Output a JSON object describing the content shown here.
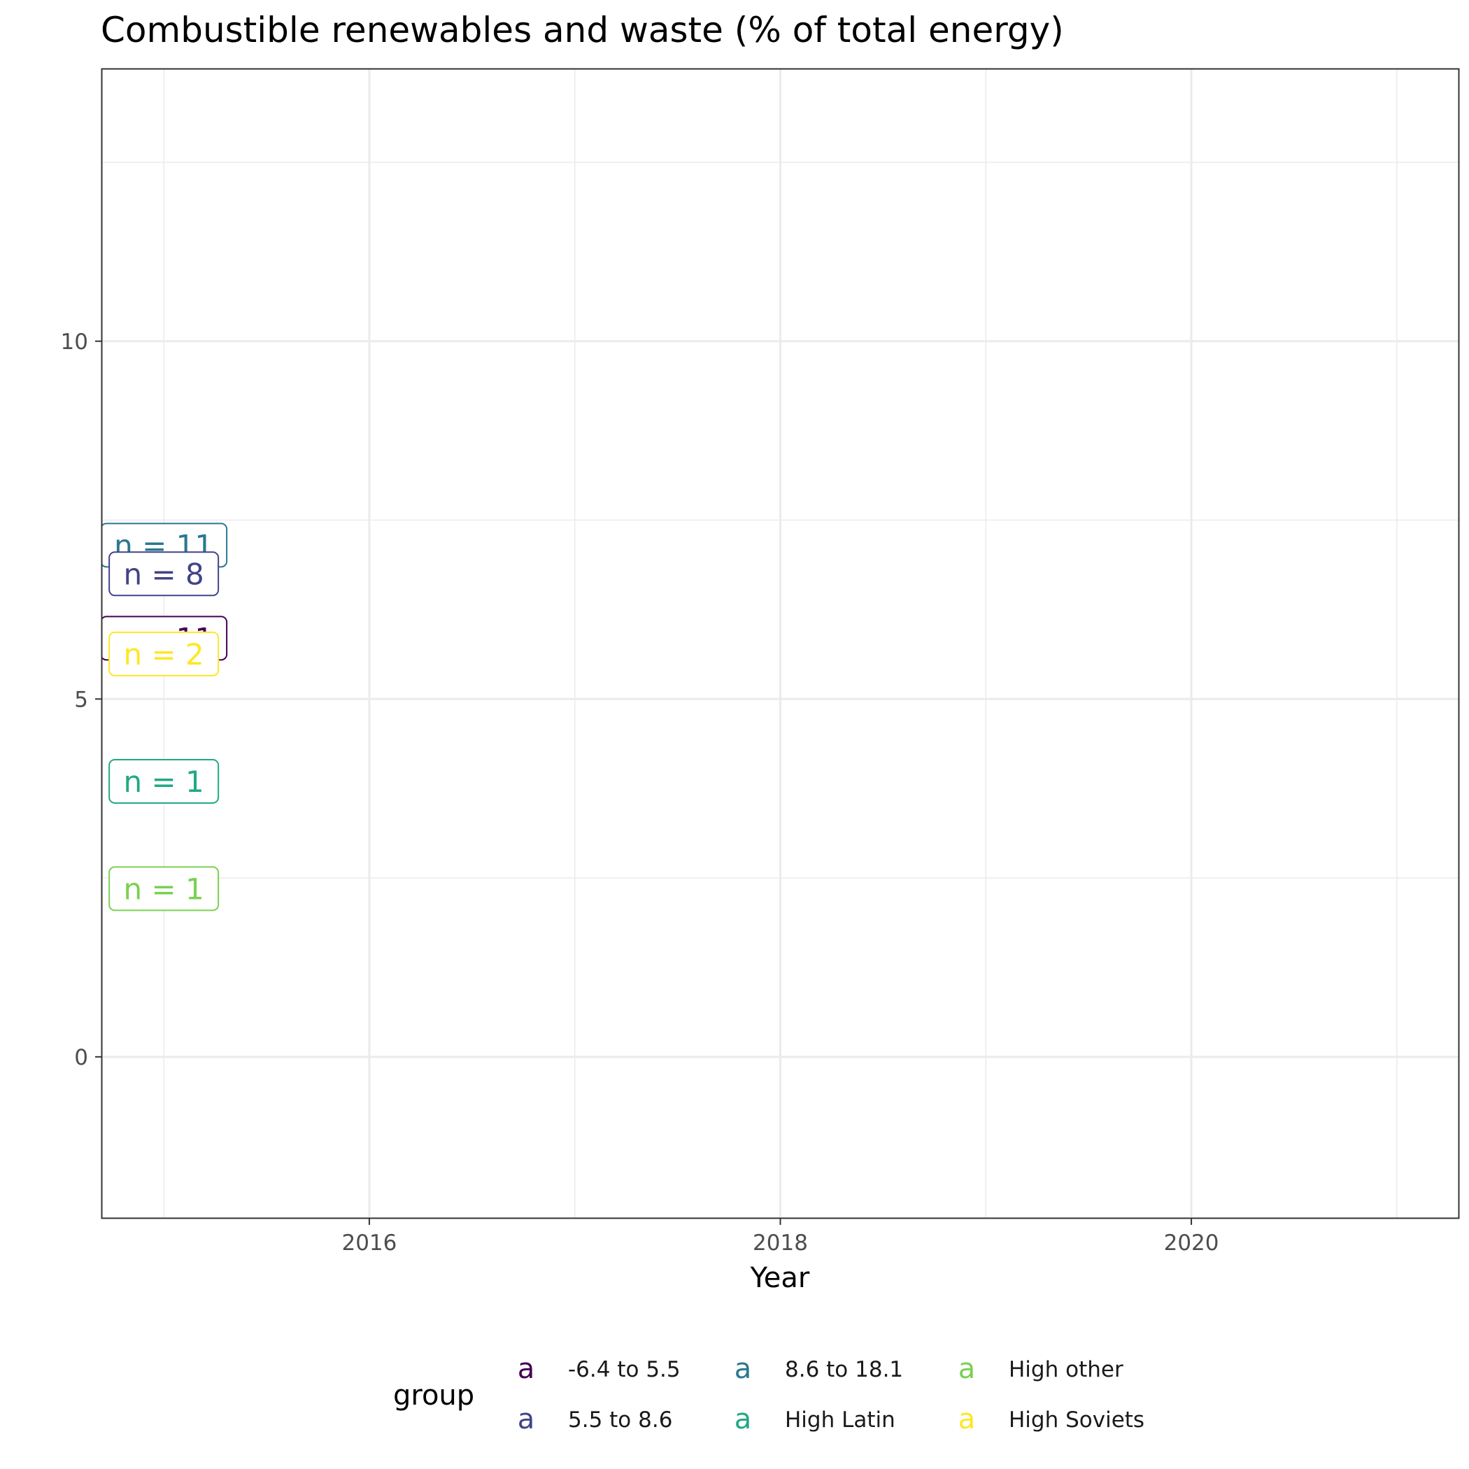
{
  "chart_data": {
    "type": "line",
    "title": "Combustible renewables and waste (% of total energy)",
    "xlabel": "Year",
    "ylabel": "",
    "xlim": [
      2014.7,
      2021.3
    ],
    "ylim": [
      -2.25,
      13.8
    ],
    "x_ticks": [
      2016,
      2018,
      2020
    ],
    "x_tick_labels": [
      "2016",
      "2018",
      "2020"
    ],
    "x_minor": [
      2015,
      2017,
      2019,
      2021
    ],
    "y_ticks": [
      0,
      5,
      10
    ],
    "y_tick_labels": [
      "0",
      "5",
      "10"
    ],
    "y_minor": [
      -2.5,
      2.5,
      7.5,
      12.5
    ],
    "grid": true,
    "legend": {
      "title": "group",
      "position": "bottom",
      "key_glyph": "a",
      "items": [
        {
          "label": "-6.4 to 5.5",
          "color": "#440154"
        },
        {
          "label": "5.5 to 8.6",
          "color": "#414487"
        },
        {
          "label": "8.6 to 18.1",
          "color": "#2a788e"
        },
        {
          "label": "High Latin",
          "color": "#22a884"
        },
        {
          "label": "High other",
          "color": "#7ad151"
        },
        {
          "label": "High Soviets",
          "color": "#fde725"
        }
      ]
    },
    "annotations": [
      {
        "group": "-6.4 to 5.5",
        "x": 2015,
        "y": 5.85,
        "text": "n = 11",
        "color": "#440154"
      },
      {
        "group": "8.6 to 18.1",
        "x": 2015,
        "y": 7.15,
        "text": "n = 11",
        "color": "#2a788e"
      },
      {
        "group": "5.5 to 8.6",
        "x": 2015,
        "y": 6.75,
        "text": "n = 8",
        "color": "#414487"
      },
      {
        "group": "High Soviets",
        "x": 2015,
        "y": 5.63,
        "text": "n = 2",
        "color": "#fde725"
      },
      {
        "group": "High Latin",
        "x": 2015,
        "y": 3.85,
        "text": "n = 1",
        "color": "#22a884"
      },
      {
        "group": "High other",
        "x": 2015,
        "y": 2.35,
        "text": "n = 1",
        "color": "#7ad151"
      }
    ]
  }
}
